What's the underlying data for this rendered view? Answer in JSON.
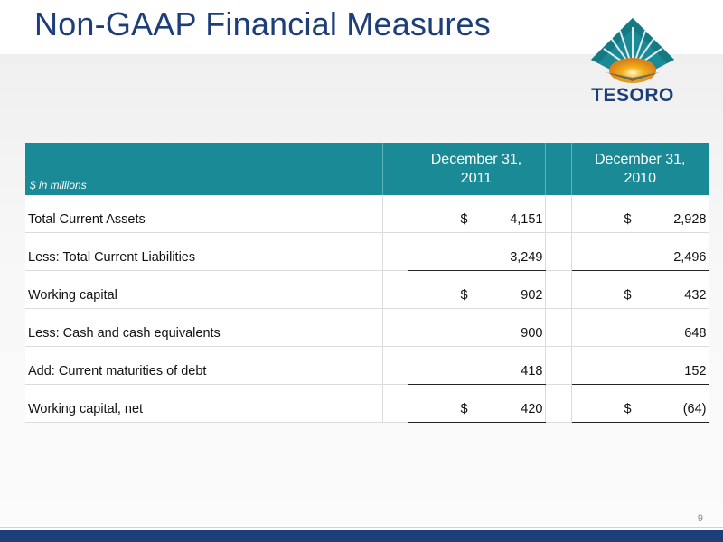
{
  "slide": {
    "title": "Non-GAAP Financial Measures",
    "page_number": "9"
  },
  "logo": {
    "text": "TESORO",
    "icon": "tesoro-sunburst-icon"
  },
  "table": {
    "unit_label": "$ in millions",
    "columns": [
      {
        "line1": "December 31,",
        "line2": "2011"
      },
      {
        "line1": "December 31,",
        "line2": "2010"
      }
    ],
    "rows": [
      {
        "label": "Total Current Assets",
        "c1_cur": "$",
        "c1": "4,151",
        "c2_cur": "$",
        "c2": "2,928"
      },
      {
        "label": "Less: Total Current Liabilities",
        "c1_cur": "",
        "c1": "3,249",
        "c2_cur": "",
        "c2": "2,496"
      },
      {
        "label": "Working capital",
        "c1_cur": "$",
        "c1": "902",
        "c2_cur": "$",
        "c2": "432"
      },
      {
        "label": "Less: Cash and cash equivalents",
        "c1_cur": "",
        "c1": "900",
        "c2_cur": "",
        "c2": "648"
      },
      {
        "label": "Add: Current maturities of debt",
        "c1_cur": "",
        "c1": "418",
        "c2_cur": "",
        "c2": "152"
      },
      {
        "label": "Working capital, net",
        "c1_cur": "$",
        "c1": "420",
        "c2_cur": "$",
        "c2": "(64)"
      }
    ]
  },
  "colors": {
    "title": "#1d3e78",
    "header_bg": "#1a8a96",
    "footer_band": "#1d3e78"
  }
}
